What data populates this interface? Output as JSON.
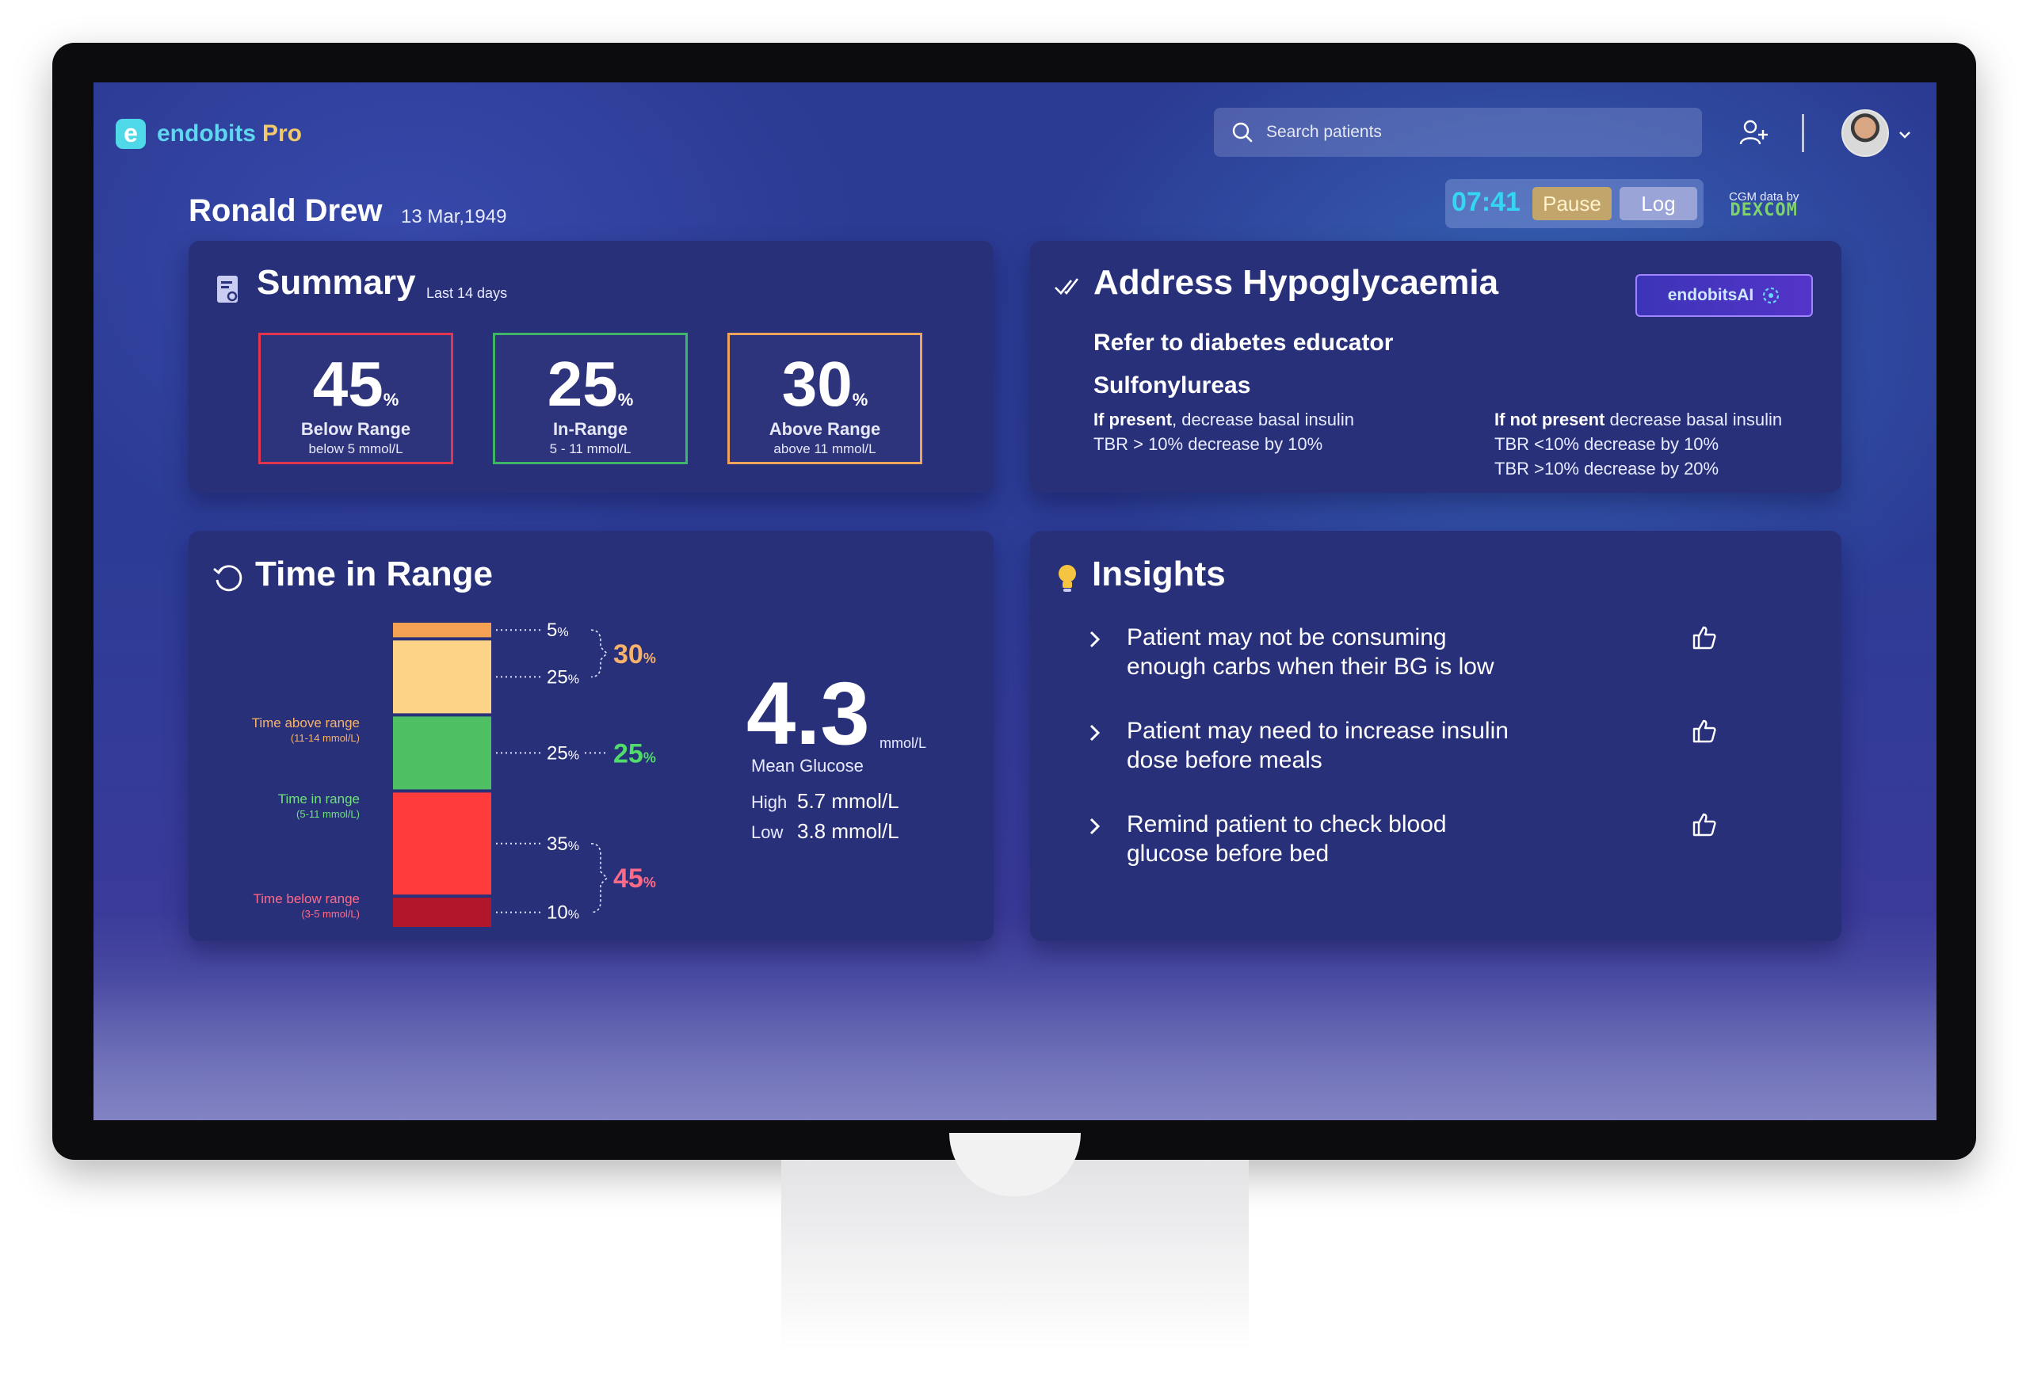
{
  "app": {
    "name": "endobits",
    "name_suffix": "Pro",
    "logo_letter": "e"
  },
  "header": {
    "search_placeholder": "Search patients",
    "icons": [
      "search-icon",
      "add-user-icon",
      "avatar",
      "chevron-down-icon"
    ]
  },
  "patient": {
    "name": "Ronald Drew",
    "dob": "13 Mar,1949"
  },
  "session": {
    "timer": "07:41",
    "pause_label": "Pause",
    "log_label": "Log"
  },
  "cgm": {
    "label": "CGM data by",
    "brand": "DEXCOM"
  },
  "summary": {
    "title": "Summary",
    "period": "Last 14 days",
    "stats": [
      {
        "value": "45",
        "unit": "%",
        "label": "Below Range",
        "range": "below 5 mmol/L",
        "color": "#e2354e"
      },
      {
        "value": "25",
        "unit": "%",
        "label": "In-Range",
        "range": "5 - 11 mmol/L",
        "color": "#3fb56a"
      },
      {
        "value": "30",
        "unit": "%",
        "label": "Above Range",
        "range": "above 11 mmol/L",
        "color": "#f0a35a"
      }
    ]
  },
  "hypo": {
    "title": "Address Hypoglycaemia",
    "ai_label": "endobitsAI",
    "line1": "Refer to diabetes educator",
    "drug": "Sulfonylureas",
    "left_col": {
      "bold": "If present",
      "rest": ", decrease basal insulin",
      "line2": "TBR > 10% decrease by 10%"
    },
    "right_col": {
      "bold": "If not present",
      "rest": " decrease basal insulin",
      "line2": "TBR <10% decrease by 10%",
      "line3": "TBR >10% decrease by 20%"
    }
  },
  "tir": {
    "title": "Time in Range",
    "labels": {
      "above": "Time above range",
      "above_range": "(11-14 mmol/L)",
      "in": "Time in range",
      "in_range": "(5-11 mmol/L)",
      "below": "Time below range",
      "below_range": "(3-5 mmol/L)"
    },
    "segments": [
      {
        "name": "very-high",
        "value": 5,
        "label": "5",
        "color": "#f4a154"
      },
      {
        "name": "high",
        "value": 25,
        "label": "25",
        "color": "#fdd387"
      },
      {
        "name": "in-range",
        "value": 25,
        "label": "25",
        "color": "#4fbf63"
      },
      {
        "name": "low",
        "value": 35,
        "label": "35",
        "color": "#ff3b3b"
      },
      {
        "name": "very-low",
        "value": 10,
        "label": "10",
        "color": "#b1162a"
      }
    ],
    "totals": {
      "above": "30",
      "in": "25",
      "below": "45",
      "pct": "%"
    },
    "mean": {
      "value": "4.3",
      "unit": "mmol/L",
      "label": "Mean Glucose"
    },
    "high": {
      "key": "High",
      "value": "5.7 mmol/L"
    },
    "low": {
      "key": "Low",
      "value": "3.8 mmol/L"
    }
  },
  "insights": {
    "title": "Insights",
    "items": [
      {
        "line1": "Patient may not be consuming",
        "line2": "enough carbs when their BG is low"
      },
      {
        "line1": "Patient may need to increase insulin",
        "line2": "dose before meals"
      },
      {
        "line1": "Remind patient to check blood",
        "line2": "glucose before bed"
      }
    ]
  },
  "colors": {
    "card": "#29307a",
    "accent_cyan": "#35d6f2",
    "above": "#f6b26b",
    "in": "#4fdc6a",
    "below": "#ff6a86"
  }
}
